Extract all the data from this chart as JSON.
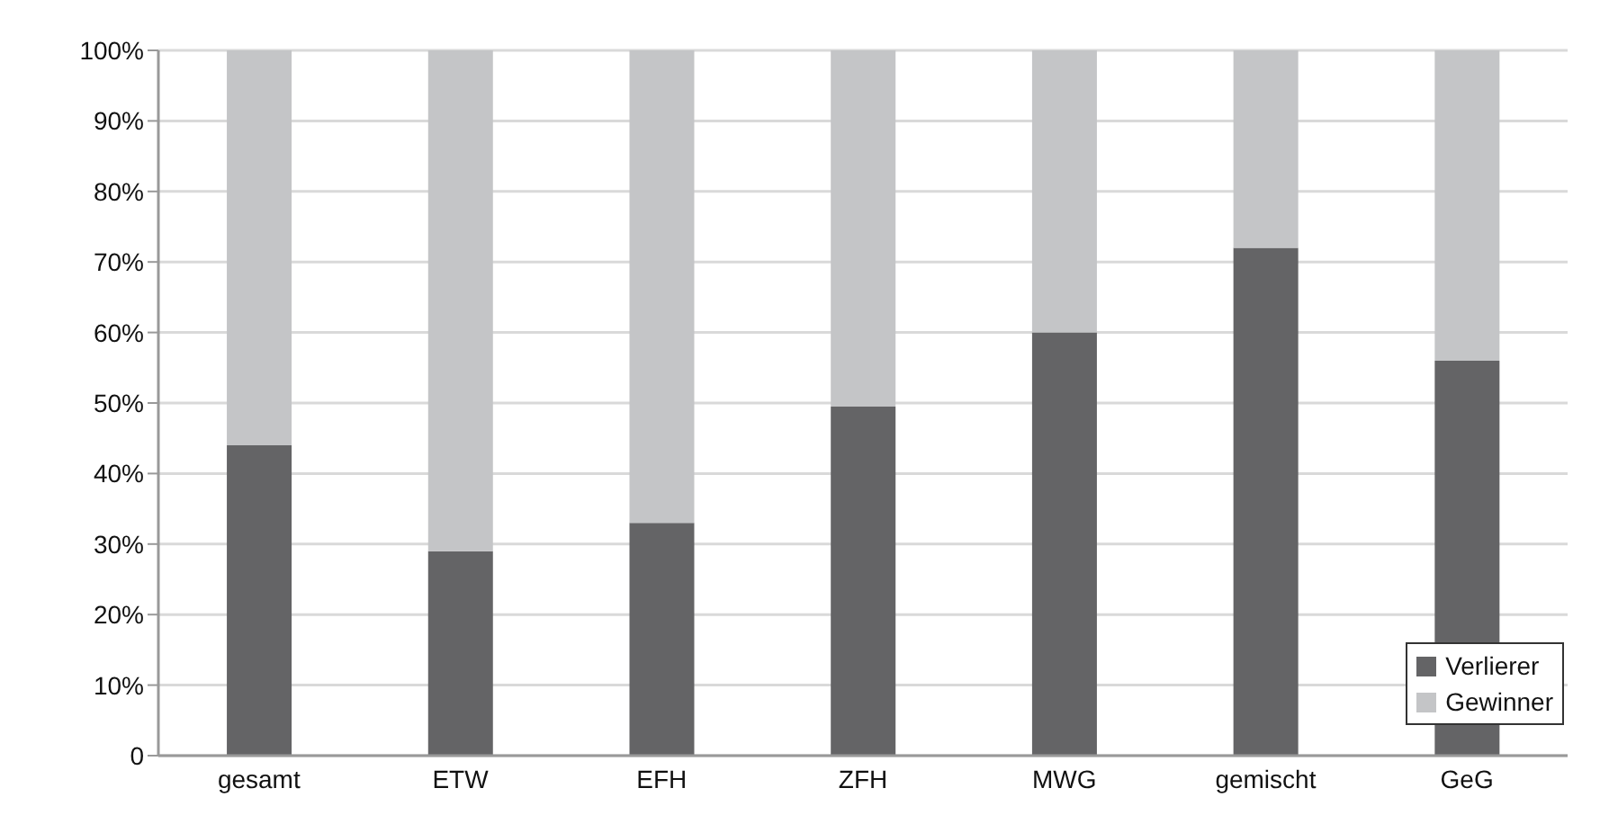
{
  "chart_data": {
    "type": "bar",
    "stacked": true,
    "categories": [
      "gesamt",
      "ETW",
      "EFH",
      "ZFH",
      "MWG",
      "gemischt",
      "GeG"
    ],
    "series": [
      {
        "name": "Verlierer",
        "color": "#646466",
        "values": [
          44,
          29,
          33,
          49.5,
          60,
          72,
          56
        ]
      },
      {
        "name": "Gewinner",
        "color": "#c4c5c7",
        "values": [
          56,
          71,
          67,
          50.5,
          40,
          28,
          44
        ]
      }
    ],
    "ylim": [
      0,
      100
    ],
    "yticks": [
      {
        "value": 0,
        "label": "0"
      },
      {
        "value": 10,
        "label": "10%"
      },
      {
        "value": 20,
        "label": "20%"
      },
      {
        "value": 30,
        "label": "30%"
      },
      {
        "value": 40,
        "label": "40%"
      },
      {
        "value": 50,
        "label": "50%"
      },
      {
        "value": 60,
        "label": "60%"
      },
      {
        "value": 70,
        "label": "70%"
      },
      {
        "value": 80,
        "label": "80%"
      },
      {
        "value": 90,
        "label": "90%"
      },
      {
        "value": 100,
        "label": "100%"
      }
    ],
    "grid": "y",
    "legend": "bottom right"
  }
}
